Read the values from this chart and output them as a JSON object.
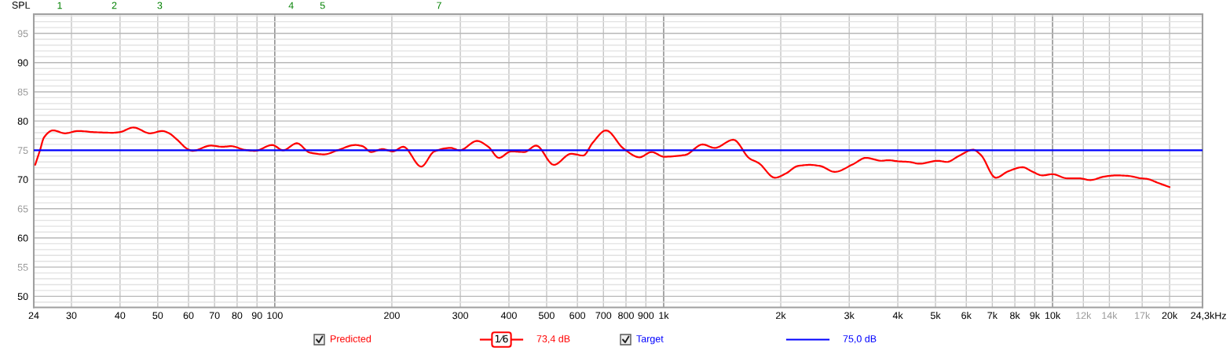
{
  "chart_data": {
    "type": "line",
    "ylabel": "SPL",
    "xlabel": "Hz",
    "log": "x",
    "xlim": [
      24,
      24300
    ],
    "ylim": [
      48.1,
      98.3
    ],
    "xticks": [
      24,
      30,
      40,
      50,
      60,
      70,
      80,
      90,
      100,
      200,
      300,
      400,
      500,
      600,
      700,
      800,
      900,
      {
        "value": 1000,
        "label": "1k"
      },
      {
        "value": 2000,
        "label": "2k"
      },
      {
        "value": 3000,
        "label": "3k"
      },
      {
        "value": 4000,
        "label": "4k"
      },
      {
        "value": 5000,
        "label": "5k"
      },
      {
        "value": 6000,
        "label": "6k"
      },
      {
        "value": 7000,
        "label": "7k"
      },
      {
        "value": 8000,
        "label": "8k"
      },
      {
        "value": 9000,
        "label": "9k"
      },
      {
        "value": 10000,
        "label": "10k"
      },
      {
        "value": 12000,
        "label": "12k"
      },
      {
        "value": 14000,
        "label": "14k"
      },
      {
        "value": 17000,
        "label": "17k"
      },
      {
        "value": 20000,
        "label": "20k"
      },
      {
        "value": 24300,
        "label": "24,3k"
      }
    ],
    "yticks": [
      50,
      55,
      60,
      65,
      70,
      75,
      80,
      85,
      90,
      95
    ],
    "grid": true,
    "legend": "bottom",
    "line_style": "solid",
    "series": [
      {
        "name": "Predicted",
        "color": "#ff0000",
        "x": [
          24.2,
          24.9,
          25.5,
          26.9,
          28.9,
          31.2,
          34.3,
          38.3,
          39.9,
          43.3,
          47.8,
          51.4,
          53.5,
          56.1,
          59.7,
          61.5,
          68.4,
          73.4,
          77.3,
          83.4,
          88.8,
          98.5,
          105,
          114,
          123,
          134,
          145,
          161,
          168,
          177,
          189,
          201,
          214,
          238,
          257,
          283,
          299,
          331,
          354,
          377,
          405,
          438,
          470,
          522,
          578,
          621,
          657,
          711,
          788,
          867,
          931,
          1002,
          1136,
          1259,
          1352,
          1511,
          1662,
          1756,
          1932,
          2059,
          2212,
          2375,
          2527,
          2753,
          3067,
          3312,
          3636,
          3777,
          4018,
          4276,
          4548,
          5068,
          5349,
          5734,
          6247,
          6541,
          7143,
          7691,
          8375,
          8840,
          9406,
          10000,
          10900,
          11700,
          12500,
          13600,
          14600,
          15700,
          16900,
          17500,
          18700,
          20000
        ],
        "values": [
          72.5,
          75.0,
          77.2,
          78.4,
          77.9,
          78.3,
          78.1,
          78.0,
          78.1,
          78.9,
          77.9,
          78.3,
          77.9,
          76.8,
          75.2,
          74.9,
          75.8,
          75.6,
          75.7,
          75.1,
          74.9,
          75.9,
          75.0,
          76.2,
          74.6,
          74.3,
          75.0,
          75.9,
          75.7,
          74.7,
          75.2,
          74.8,
          75.6,
          72.2,
          74.8,
          75.4,
          75.0,
          76.6,
          75.6,
          73.7,
          74.8,
          74.7,
          75.8,
          72.5,
          74.4,
          74.1,
          76.3,
          78.4,
          75.3,
          73.8,
          74.7,
          73.9,
          74.2,
          76.0,
          75.4,
          76.8,
          73.6,
          72.8,
          70.3,
          71.0,
          72.3,
          72.5,
          72.3,
          71.3,
          72.6,
          73.7,
          73.2,
          73.3,
          73.1,
          73.0,
          72.7,
          73.2,
          73.0,
          74.0,
          75.1,
          74.2,
          70.3,
          71.4,
          72.1,
          71.4,
          70.7,
          70.9,
          70.2,
          70.2,
          69.9,
          70.5,
          70.7,
          70.6,
          70.2,
          70.1,
          69.4,
          68.7
        ]
      },
      {
        "name": "Target",
        "color": "#0000ff",
        "x": [
          24,
          24300
        ],
        "values": [
          75,
          75
        ]
      }
    ],
    "annotations": [
      "1",
      "2",
      "3",
      "4",
      "5",
      "7",
      "1⁄6",
      "73,4 dB",
      "75,0 dB"
    ]
  }
}
